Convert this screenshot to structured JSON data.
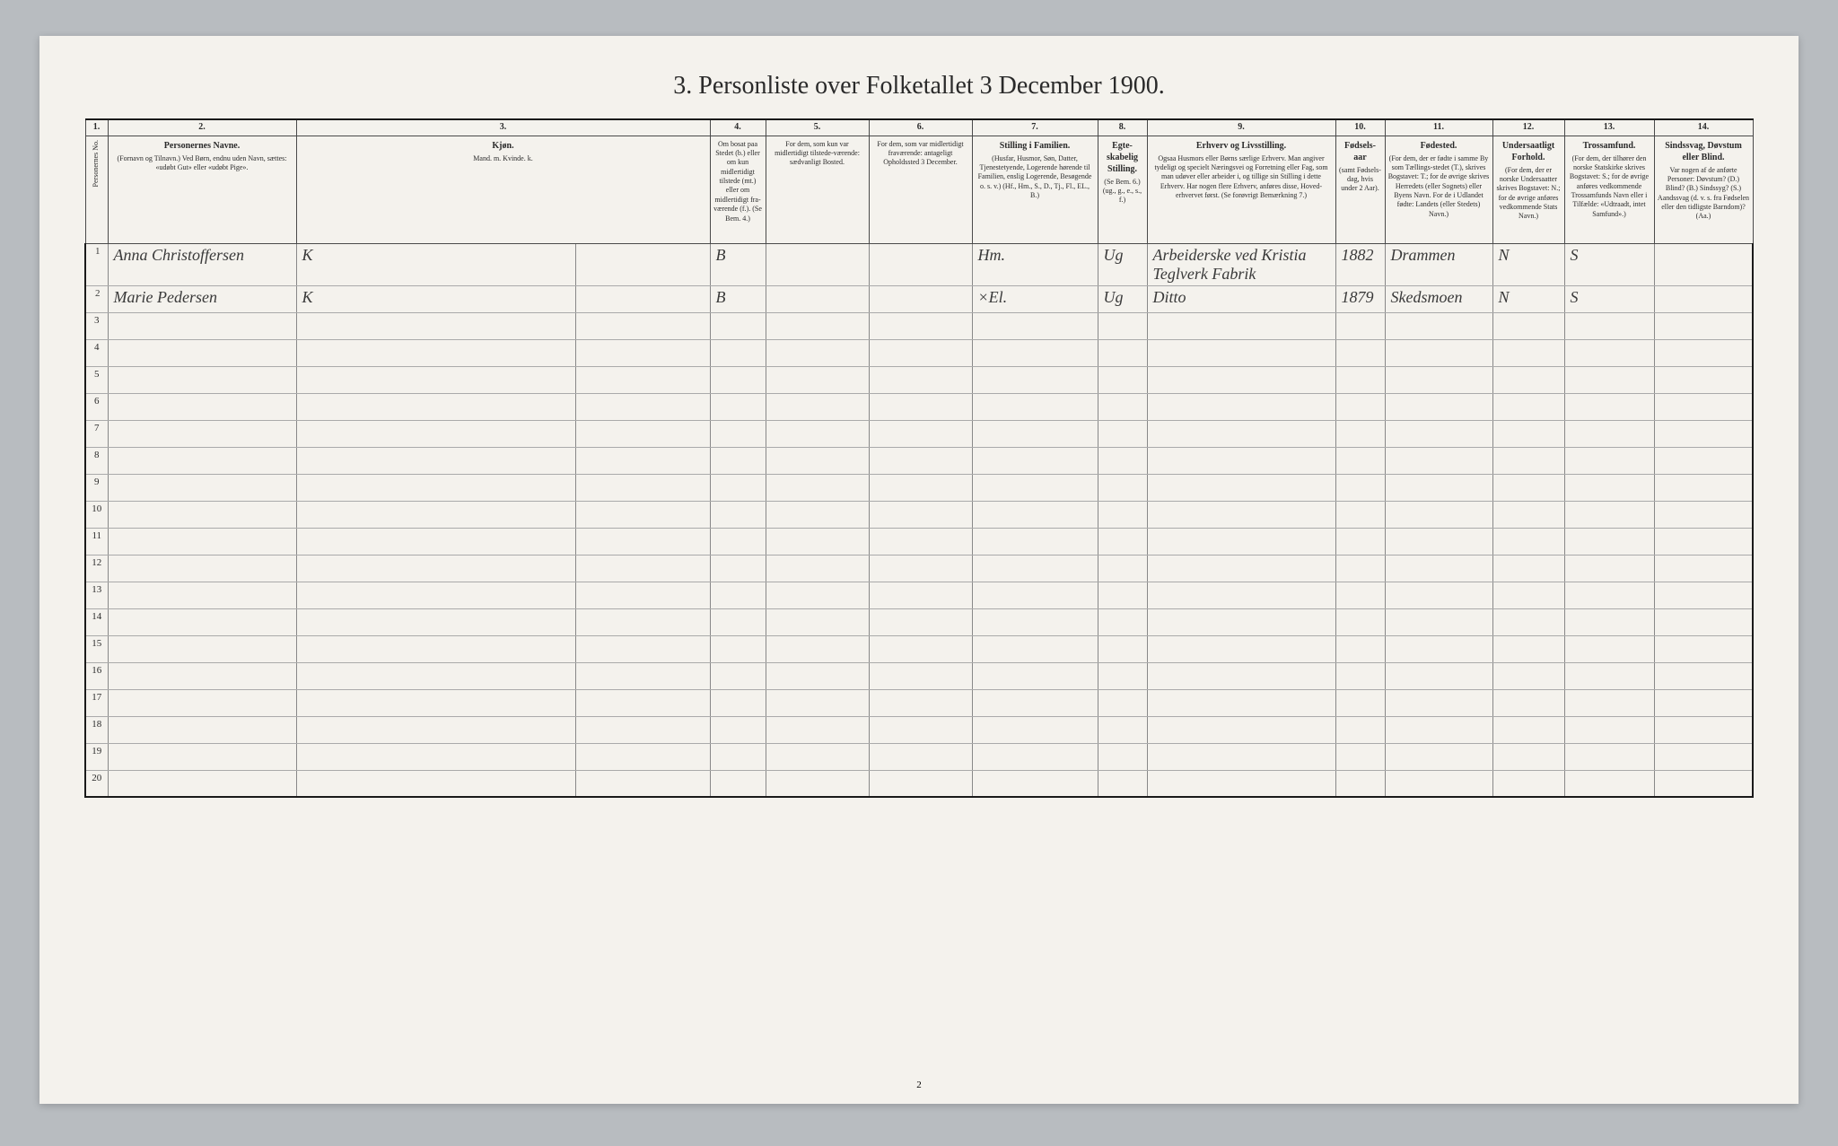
{
  "title": "3. Personliste over Folketallet 3 December 1900.",
  "pageNumber": "2",
  "columns": {
    "numbers": [
      "1.",
      "2.",
      "3.",
      "4.",
      "5.",
      "6.",
      "7.",
      "8.",
      "9.",
      "10.",
      "11.",
      "12.",
      "13.",
      "14."
    ],
    "headers": [
      {
        "main": "Personernes No.",
        "sub": ""
      },
      {
        "main": "Personernes Navne.",
        "sub": "(Fornavn og Tilnavn.)\nVed Børn, endnu uden Navn, sættes: «udøbt Gut» eller «udøbt Pige»."
      },
      {
        "main": "Kjøn.",
        "sub": "Mand. m.\nKvinde. k."
      },
      {
        "main": "",
        "sub": "Om bosat paa Stedet (b.) eller om kun midlertidigt tilstede (mt.) eller om midlertidigt fra-værende (f.). (Se Bem. 4.)"
      },
      {
        "main": "",
        "sub": "For dem, som kun var midlertidigt tilstede-værende:\nsædvanligt Bosted."
      },
      {
        "main": "",
        "sub": "For dem, som var midlertidigt fraværende:\nantageligt Opholdssted 3 December."
      },
      {
        "main": "Stilling i Familien.",
        "sub": "(Husfar, Husmor, Søn, Datter, Tjenestetyende, Logerende hørende til Familien, enslig Logerende, Besøgende o. s. v.)\n(Hf., Hm., S., D., Tj., Fl., EL., B.)"
      },
      {
        "main": "Egte-skabelig Stilling.",
        "sub": "(Se Bem. 6.)\n(ug., g., e., s., f.)"
      },
      {
        "main": "Erhverv og Livsstilling.",
        "sub": "Ogsaa Husmors eller Børns særlige Erhverv. Man angiver tydeligt og specielt Næringsvei og Forretning eller Fag, som man udøver eller arbeider i, og tillige sin Stilling i dette Erhverv. Har nogen flere Erhverv, anføres disse, Hoved-erhvervet først.\n(Se forøvrigt Bemærkning 7.)"
      },
      {
        "main": "Fødsels-aar",
        "sub": "(samt Fødsels-dag, hvis under 2 Aar)."
      },
      {
        "main": "Fødested.",
        "sub": "(For dem, der er fødte i samme By som Tællings-stedet (T.), skrives Bogstavet: T.; for de øvrige skrives Herredets (eller Sognets) eller Byens Navn. For de i Udlandet fødte: Landets (eller Stedets) Navn.)"
      },
      {
        "main": "Undersaatligt Forhold.",
        "sub": "(For dem, der er norske Undersaatter skrives Bogstavet: N.; for de øvrige anføres vedkommende Stats Navn.)"
      },
      {
        "main": "Trossamfund.",
        "sub": "(For dem, der tilhører den norske Statskirke skrives Bogstavet: S.; for de øvrige anføres vedkommende Trossamfunds Navn eller i Tilfælde: «Udtraadt, intet Samfund».)"
      },
      {
        "main": "Sindssvag, Døvstum eller Blind.",
        "sub": "Var nogen af de anførte Personer:\nDøvstum? (D.)\nBlind? (B.)\nSindssyg? (S.)\nAandssvag (d. v. s. fra Fødselen eller den tidligste Barndom)? (Aa.)"
      }
    ]
  },
  "rows": [
    {
      "no": "1",
      "name": "Anna Christoffersen",
      "sex": "K",
      "pres": "B",
      "c5": "",
      "c6": "",
      "fam": "Hm.",
      "mar": "Ug",
      "occ": "Arbeiderske ved Kristia Teglverk Fabrik",
      "born": "1882",
      "place": "Drammen",
      "nat": "N",
      "rel": "S",
      "dis": ""
    },
    {
      "no": "2",
      "name": "Marie Pedersen",
      "sex": "K",
      "pres": "B",
      "c5": "",
      "c6": "",
      "fam": "×El.",
      "mar": "Ug",
      "occ": "Ditto",
      "born": "1879",
      "place": "Skedsmoen",
      "nat": "N",
      "rel": "S",
      "dis": ""
    }
  ],
  "emptyRows": [
    "3",
    "4",
    "5",
    "6",
    "7",
    "8",
    "9",
    "10",
    "11",
    "12",
    "13",
    "14",
    "15",
    "16",
    "17",
    "18",
    "19",
    "20"
  ],
  "colors": {
    "pageBg": "#f4f2ed",
    "bodyBg": "#b8bcc0",
    "ink": "#2a2a2a",
    "rule": "#4a4a4a",
    "lightRule": "#aaa",
    "script": "#3a3a3a"
  }
}
